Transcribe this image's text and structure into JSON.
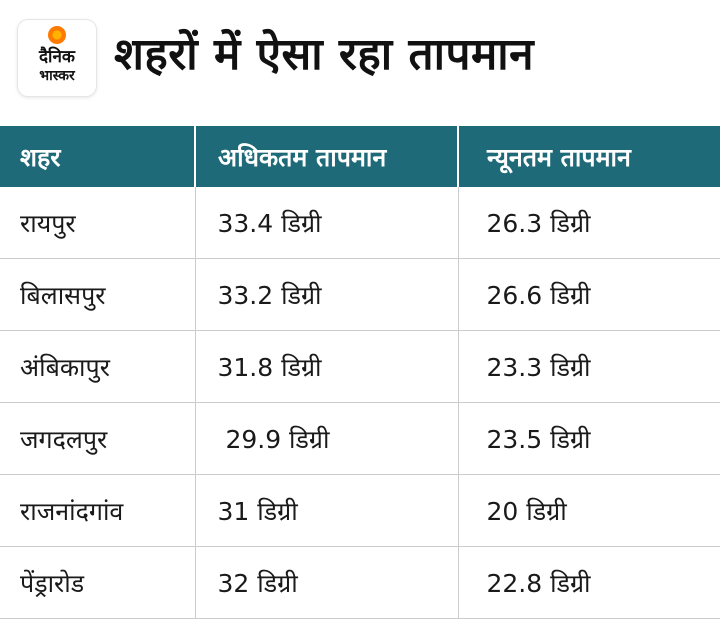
{
  "logo": {
    "line1": "दैनिक",
    "line2": "भास्कर"
  },
  "title": "शहरों में ऐसा रहा तापमान",
  "table": {
    "headers": [
      "शहर",
      "अधिकतम तापमान",
      "न्यूनतम तापमान"
    ],
    "rows": [
      [
        "रायपुर",
        "33.4 डिग्री",
        "26.3 डिग्री"
      ],
      [
        "बिलासपुर",
        "33.2 डिग्री",
        "26.6 डिग्री"
      ],
      [
        "अंबिकापुर",
        "31.8 डिग्री",
        "23.3 डिग्री"
      ],
      [
        "जगदलपुर",
        " 29.9 डिग्री",
        "23.5 डिग्री"
      ],
      [
        "राजनांदगांव",
        "31 डिग्री",
        "20 डिग्री"
      ],
      [
        "पेंड्रारोड",
        "32 डिग्री",
        "22.8 डिग्री"
      ]
    ]
  },
  "colors": {
    "header_bg": "#1e6a78",
    "logo_accent": "#ff7a00"
  }
}
